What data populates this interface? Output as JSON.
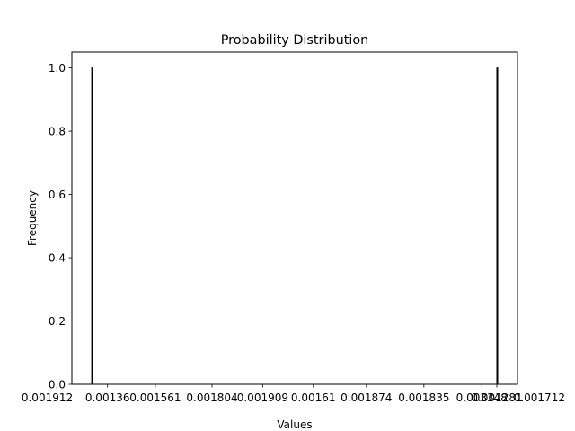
{
  "chart_data": {
    "type": "bar",
    "title": "Probability Distribution",
    "xlabel": "Values",
    "ylabel": "Frequency",
    "ylim": [
      0,
      1.05
    ],
    "xlim": [
      -0.05,
      1.05
    ],
    "x": [
      0,
      1
    ],
    "values": [
      1.0,
      1.0
    ],
    "bar_fill": "none",
    "bar_edge": "#000000",
    "yticks": [
      {
        "value": 0.0,
        "label": "0.0"
      },
      {
        "value": 0.2,
        "label": "0.2"
      },
      {
        "value": 0.4,
        "label": "0.4"
      },
      {
        "value": 0.6,
        "label": "0.6"
      },
      {
        "value": 0.8,
        "label": "0.8"
      },
      {
        "value": 1.0,
        "label": "1.0"
      }
    ],
    "xticks": [
      {
        "value": -0.111,
        "label": "0.001912"
      },
      {
        "value": 0.038,
        "label": "0.00136"
      },
      {
        "value": 0.156,
        "label": "0.001561"
      },
      {
        "value": 0.296,
        "label": "0.001804"
      },
      {
        "value": 0.421,
        "label": "0.001909"
      },
      {
        "value": 0.546,
        "label": "0.00161"
      },
      {
        "value": 0.677,
        "label": "0.001874"
      },
      {
        "value": 0.819,
        "label": "0.001835"
      },
      {
        "value": 0.962,
        "label": "0.003348"
      },
      {
        "value": 0.999,
        "label": "0.001281"
      },
      {
        "value": 1.104,
        "label": "0.001712"
      }
    ],
    "grid": false,
    "legend": "none"
  }
}
